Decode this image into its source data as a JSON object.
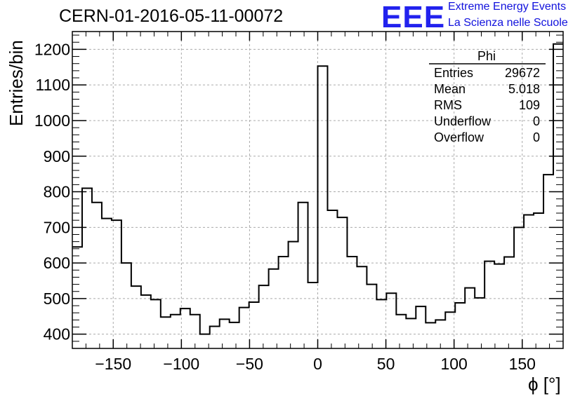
{
  "header": {
    "title": "CERN-01-2016-05-11-00072",
    "logo_text": "EEE",
    "logo_line1": "Extreme Energy Events",
    "logo_line2": "La Scienza nelle Scuole"
  },
  "stats_box": {
    "title": "Phi",
    "rows": [
      {
        "label": "Entries",
        "value": "29672"
      },
      {
        "label": "Mean",
        "value": "5.018"
      },
      {
        "label": "RMS",
        "value": "109"
      },
      {
        "label": "Underflow",
        "value": "0"
      },
      {
        "label": "Overflow",
        "value": "0"
      }
    ]
  },
  "chart_data": {
    "type": "bar",
    "style": "step-histogram",
    "xlabel": "ϕ [°]",
    "ylabel": "Entries/bin",
    "xlim": [
      -180,
      180
    ],
    "ylim": [
      360,
      1250
    ],
    "grid": true,
    "bin_width": 7.2,
    "x_ticks": [
      -150,
      -100,
      -50,
      0,
      50,
      100,
      150
    ],
    "x_tick_labels": [
      "−150",
      "−100",
      "−50",
      "0",
      "50",
      "100",
      "150"
    ],
    "y_ticks": [
      400,
      500,
      600,
      700,
      800,
      900,
      1000,
      1100,
      1200
    ],
    "y_tick_labels": [
      "400",
      "500",
      "600",
      "700",
      "800",
      "900",
      "1000",
      "1100",
      "1200"
    ],
    "values": [
      645,
      810,
      770,
      725,
      720,
      600,
      535,
      510,
      497,
      448,
      455,
      472,
      455,
      400,
      422,
      442,
      433,
      475,
      490,
      537,
      583,
      618,
      660,
      770,
      545,
      1153,
      748,
      728,
      618,
      590,
      540,
      497,
      515,
      455,
      444,
      478,
      432,
      440,
      462,
      488,
      530,
      502,
      605,
      597,
      617,
      700,
      735,
      740,
      848,
      1215
    ]
  }
}
